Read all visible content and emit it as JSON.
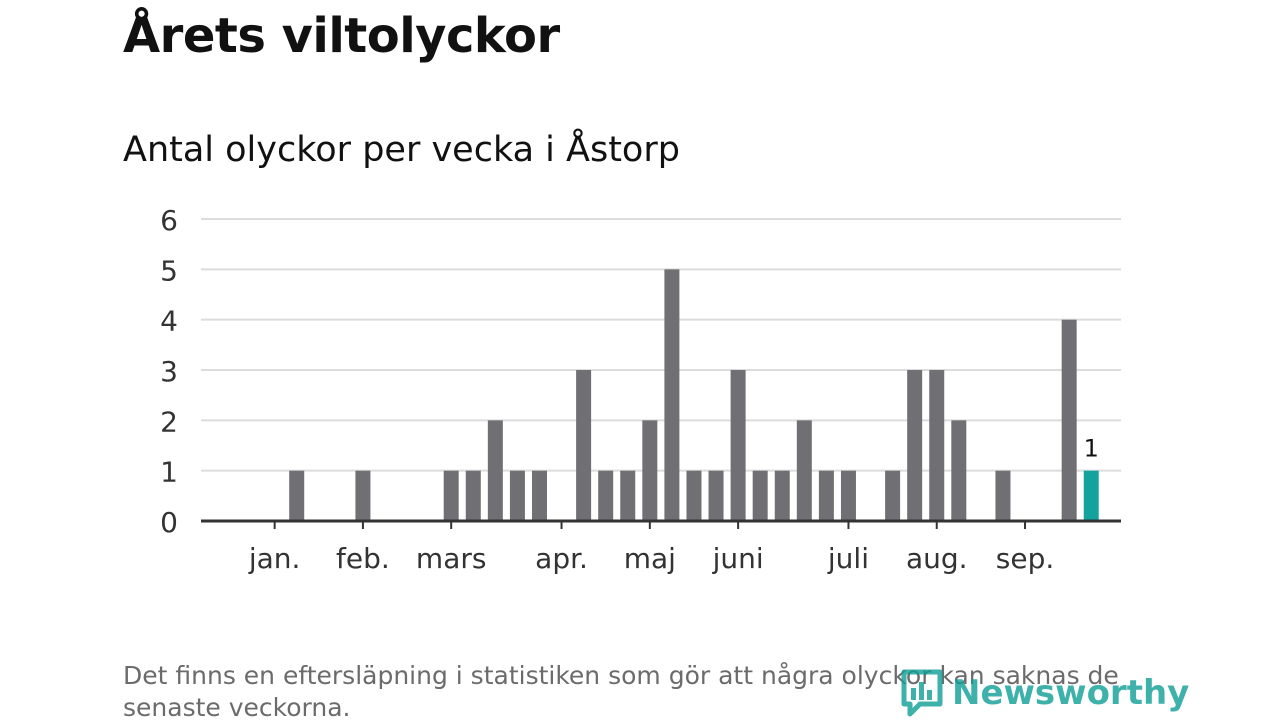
{
  "header": {
    "title": "Årets viltolyckor"
  },
  "chart_data": {
    "type": "bar",
    "title": "Antal olyckor per vecka i Åstorp",
    "xlabel": "",
    "ylabel": "",
    "ylim": [
      0,
      6
    ],
    "yticks": [
      0,
      1,
      2,
      3,
      4,
      5,
      6
    ],
    "grid": true,
    "weeks": [
      1,
      2,
      3,
      4,
      5,
      6,
      7,
      8,
      9,
      10,
      11,
      12,
      13,
      14,
      15,
      16,
      17,
      18,
      19,
      20,
      21,
      22,
      23,
      24,
      25,
      26,
      27,
      28,
      29,
      30,
      31,
      32,
      33,
      34,
      35,
      36,
      37,
      38,
      39,
      40,
      41,
      42
    ],
    "values": [
      0,
      0,
      0,
      1,
      0,
      0,
      1,
      0,
      0,
      0,
      1,
      1,
      2,
      1,
      1,
      0,
      3,
      1,
      1,
      2,
      5,
      1,
      1,
      3,
      1,
      1,
      2,
      1,
      1,
      0,
      1,
      3,
      3,
      2,
      0,
      1,
      0,
      0,
      4,
      1,
      0,
      0
    ],
    "highlight_index": 39,
    "highlight_label": "1",
    "month_labels": [
      "jan.",
      "feb.",
      "mars",
      "apr.",
      "maj",
      "juni",
      "juli",
      "aug.",
      "sep."
    ],
    "month_positions": [
      3.0,
      7.0,
      11.0,
      16.0,
      20.0,
      24.0,
      29.0,
      33.0,
      37.0
    ],
    "bar_color": "#707074",
    "highlight_color": "#13a39c"
  },
  "footer": {
    "note": "Det finns en eftersläpning i statistiken som gör att några olyckor kan saknas de senaste veckorna.",
    "brand": "Newsworthy",
    "brand_icon": "newsworthy-logo-icon",
    "brand_color": "#0f9e96"
  }
}
